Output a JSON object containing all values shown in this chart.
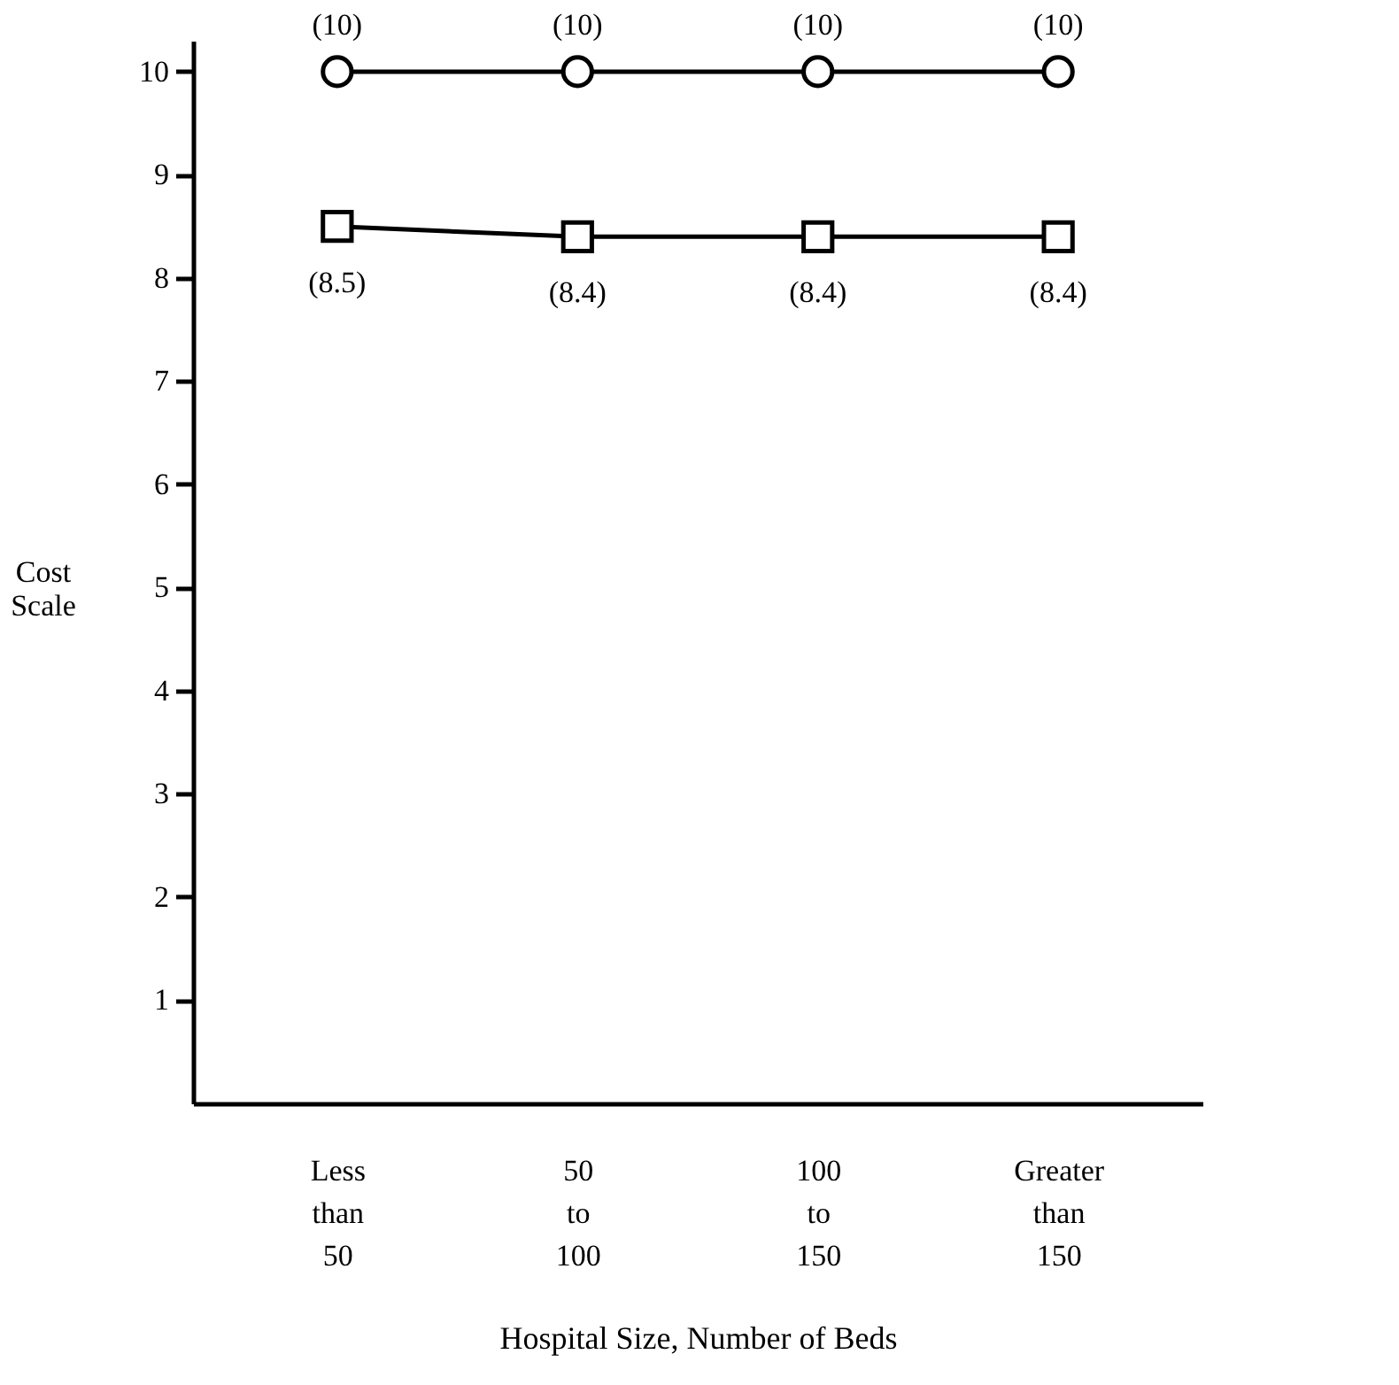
{
  "chart_data": {
    "type": "line",
    "xlabel": "Hospital Size, Number of Beds",
    "ylabel": "Cost Scale",
    "categories": [
      "Less than 50",
      "50 to 100",
      "100 to 150",
      "Greater than 150"
    ],
    "ylim": [
      0,
      10.3
    ],
    "yticks": [
      1,
      2,
      3,
      4,
      5,
      6,
      7,
      8,
      9,
      10
    ],
    "grid": false,
    "series": [
      {
        "color": "#000000",
        "marker": "circle",
        "values": [
          10,
          10,
          10,
          10
        ],
        "value_labels": [
          "(10)",
          "(10)",
          "(10)",
          "(10)"
        ]
      },
      {
        "color": "#000000",
        "marker": "square",
        "values": [
          8.5,
          8.4,
          8.4,
          8.4
        ],
        "value_labels": [
          "(8.5)",
          "(8.4)",
          "(8.4)",
          "(8.4)"
        ]
      }
    ]
  }
}
